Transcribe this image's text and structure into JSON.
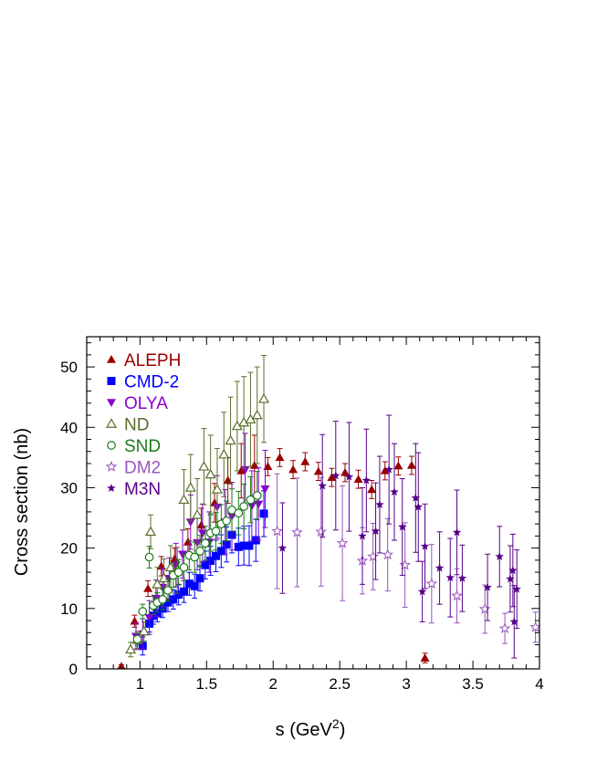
{
  "chart_data": {
    "type": "scatter",
    "xlabel": "s    (GeV",
    "xlabel_sup": "2",
    "xlabel_end": ")",
    "ylabel": "Cross section  (nb)",
    "xlim": [
      0.6,
      4.0
    ],
    "ylim": [
      0,
      55
    ],
    "xticks": [
      1,
      1.5,
      2,
      2.5,
      3,
      3.5,
      4
    ],
    "xtick_labels": [
      "1",
      "1.5",
      "2",
      "2.5",
      "3",
      "3.5",
      "4"
    ],
    "yticks": [
      0,
      10,
      20,
      30,
      40,
      50
    ],
    "ytick_labels": [
      "0",
      "10",
      "20",
      "30",
      "40",
      "50"
    ],
    "legend_position": "top-left",
    "series": [
      {
        "name": "ALEPH",
        "marker": "triangle-up-filled",
        "color": "#990000",
        "points": [
          [
            0.86,
            0.4,
            0.3
          ],
          [
            0.96,
            7.9,
            1.0
          ],
          [
            1.06,
            13.3,
            1.3
          ],
          [
            1.16,
            17.0,
            1.6
          ],
          [
            1.26,
            18.2,
            1.8
          ],
          [
            1.36,
            21.0,
            2.2
          ],
          [
            1.46,
            23.8,
            2.8
          ],
          [
            1.56,
            27.5,
            3.2
          ],
          [
            1.66,
            31.2,
            3.8
          ],
          [
            1.76,
            32.8,
            4.5
          ],
          [
            1.86,
            33.7,
            5.0
          ],
          [
            1.96,
            33.5,
            1.5
          ],
          [
            2.05,
            35.0,
            1.5
          ],
          [
            2.15,
            33.0,
            1.5
          ],
          [
            2.24,
            34.3,
            1.5
          ],
          [
            2.34,
            32.7,
            1.5
          ],
          [
            2.44,
            31.7,
            1.5
          ],
          [
            2.54,
            32.5,
            1.5
          ],
          [
            2.64,
            31.4,
            1.5
          ],
          [
            2.74,
            29.7,
            1.5
          ],
          [
            2.84,
            32.8,
            1.5
          ],
          [
            2.94,
            33.6,
            1.5
          ],
          [
            3.04,
            33.7,
            1.5
          ],
          [
            3.14,
            1.8,
            0.8
          ]
        ]
      },
      {
        "name": "CMD-2",
        "marker": "square-filled",
        "color": "#0000ff",
        "points": [
          [
            1.02,
            3.8,
            1.5
          ],
          [
            1.07,
            7.5,
            1.4
          ],
          [
            1.1,
            8.8,
            1.4
          ],
          [
            1.13,
            9.2,
            1.4
          ],
          [
            1.17,
            10.0,
            1.5
          ],
          [
            1.21,
            11.0,
            1.5
          ],
          [
            1.25,
            11.5,
            1.6
          ],
          [
            1.29,
            12.3,
            1.7
          ],
          [
            1.33,
            12.8,
            1.8
          ],
          [
            1.37,
            14.1,
            1.9
          ],
          [
            1.41,
            13.7,
            2.0
          ],
          [
            1.45,
            15.0,
            2.1
          ],
          [
            1.49,
            17.2,
            2.3
          ],
          [
            1.53,
            17.9,
            2.4
          ],
          [
            1.57,
            18.7,
            2.6
          ],
          [
            1.61,
            19.5,
            2.7
          ],
          [
            1.65,
            20.6,
            2.9
          ],
          [
            1.69,
            22.2,
            3.0
          ],
          [
            1.74,
            20.2,
            3.1
          ],
          [
            1.78,
            20.4,
            3.2
          ],
          [
            1.82,
            20.4,
            3.3
          ],
          [
            1.87,
            21.3,
            3.5
          ],
          [
            1.93,
            25.7,
            3.8
          ]
        ]
      },
      {
        "name": "OLYA",
        "marker": "triangle-down-filled",
        "color": "#8800cc",
        "points": [
          [
            0.97,
            5.4,
            2.2
          ],
          [
            1.02,
            5.8,
            2.5
          ],
          [
            1.07,
            8.5,
            2.8
          ],
          [
            1.12,
            11.7,
            3.0
          ],
          [
            1.17,
            13.5,
            3.2
          ],
          [
            1.22,
            15.0,
            3.4
          ],
          [
            1.27,
            17.2,
            3.6
          ],
          [
            1.32,
            19.0,
            4.0
          ],
          [
            1.38,
            24.3,
            4.5
          ],
          [
            1.43,
            20.9,
            4.5
          ],
          [
            1.47,
            22.5,
            4.8
          ],
          [
            1.52,
            21.0,
            5.0
          ],
          [
            1.58,
            26.8,
            5.2
          ],
          [
            1.64,
            24.3,
            5.4
          ],
          [
            1.69,
            25.3,
            5.6
          ],
          [
            1.79,
            33.0,
            6.0
          ],
          [
            1.84,
            27.0,
            5.8
          ],
          [
            1.89,
            27.3,
            6.0
          ],
          [
            1.94,
            29.8,
            6.4
          ]
        ]
      },
      {
        "name": "ND",
        "marker": "triangle-up-open",
        "color": "#5a6e2a",
        "points": [
          [
            0.93,
            3.2,
            1.2
          ],
          [
            0.98,
            4.8,
            1.4
          ],
          [
            1.03,
            6.2,
            1.6
          ],
          [
            1.08,
            22.7,
            2.8
          ],
          [
            1.13,
            14.0,
            2.8
          ],
          [
            1.18,
            15.0,
            3.2
          ],
          [
            1.23,
            16.8,
            3.6
          ],
          [
            1.28,
            16.3,
            3.8
          ],
          [
            1.33,
            28.0,
            5.0
          ],
          [
            1.38,
            30.0,
            5.5
          ],
          [
            1.43,
            25.5,
            6.0
          ],
          [
            1.48,
            33.5,
            6.3
          ],
          [
            1.53,
            32.2,
            6.5
          ],
          [
            1.58,
            29.7,
            6.8
          ],
          [
            1.63,
            35.5,
            7.0
          ],
          [
            1.68,
            37.8,
            7.2
          ],
          [
            1.73,
            40.2,
            7.4
          ],
          [
            1.78,
            40.8,
            7.6
          ],
          [
            1.83,
            41.3,
            7.8
          ],
          [
            1.88,
            42.0,
            8.0
          ],
          [
            1.93,
            44.7,
            7.2
          ]
        ]
      },
      {
        "name": "SND",
        "marker": "circle-open",
        "color": "#1a7a1a",
        "points": [
          [
            0.98,
            4.9,
            1.0
          ],
          [
            1.02,
            9.5,
            1.2
          ],
          [
            1.07,
            18.5,
            1.8
          ],
          [
            1.1,
            10.5,
            1.5
          ],
          [
            1.13,
            11.0,
            1.6
          ],
          [
            1.17,
            11.5,
            1.7
          ],
          [
            1.21,
            13.0,
            1.8
          ],
          [
            1.25,
            15.5,
            2.0
          ],
          [
            1.29,
            16.0,
            2.1
          ],
          [
            1.33,
            16.8,
            2.2
          ],
          [
            1.37,
            18.8,
            2.4
          ],
          [
            1.41,
            18.5,
            2.5
          ],
          [
            1.45,
            19.5,
            2.6
          ],
          [
            1.49,
            20.8,
            2.8
          ],
          [
            1.53,
            22.5,
            3.0
          ],
          [
            1.57,
            22.8,
            3.1
          ],
          [
            1.61,
            24.0,
            3.2
          ],
          [
            1.65,
            24.5,
            3.3
          ],
          [
            1.69,
            26.3,
            3.5
          ],
          [
            1.74,
            25.8,
            3.6
          ],
          [
            1.78,
            26.9,
            3.7
          ],
          [
            1.83,
            28.0,
            3.8
          ],
          [
            1.88,
            28.7,
            4.0
          ]
        ]
      },
      {
        "name": "DM2",
        "marker": "star-open",
        "color": "#9955bb",
        "points": [
          [
            2.03,
            22.8,
            9.5
          ],
          [
            2.18,
            22.6,
            9.0
          ],
          [
            2.36,
            22.7,
            9.0
          ],
          [
            2.52,
            20.8,
            9.5
          ],
          [
            2.67,
            17.9,
            5.5
          ],
          [
            2.75,
            18.6,
            5.5
          ],
          [
            2.86,
            18.9,
            6.0
          ],
          [
            2.99,
            17.2,
            7.0
          ],
          [
            3.19,
            14.1,
            6.5
          ],
          [
            3.38,
            12.1,
            4.5
          ],
          [
            3.59,
            9.9,
            4.0
          ],
          [
            3.74,
            6.7,
            2.5
          ],
          [
            3.97,
            6.9,
            2.5
          ]
        ]
      },
      {
        "name": "M3N",
        "marker": "star-filled",
        "color": "#550088",
        "points": [
          [
            2.07,
            20.0,
            7.5
          ],
          [
            2.37,
            30.3,
            8.5
          ],
          [
            2.47,
            32.0,
            9.0
          ],
          [
            2.57,
            31.8,
            9.0
          ],
          [
            2.67,
            22.0,
            8.0
          ],
          [
            2.7,
            31.2,
            8.5
          ],
          [
            2.77,
            22.8,
            8.0
          ],
          [
            2.8,
            27.2,
            8.0
          ],
          [
            2.87,
            33.0,
            9.0
          ],
          [
            2.91,
            29.3,
            8.0
          ],
          [
            2.97,
            23.5,
            8.0
          ],
          [
            3.07,
            28.3,
            9.0
          ],
          [
            3.09,
            26.8,
            9.0
          ],
          [
            3.12,
            12.8,
            5.0
          ],
          [
            3.14,
            20.3,
            7.0
          ],
          [
            3.25,
            16.7,
            6.0
          ],
          [
            3.33,
            15.1,
            6.5
          ],
          [
            3.38,
            22.6,
            7.0
          ],
          [
            3.42,
            15.0,
            5.5
          ],
          [
            3.61,
            13.5,
            5.5
          ],
          [
            3.7,
            18.6,
            5.0
          ],
          [
            3.78,
            14.9,
            5.5
          ],
          [
            3.8,
            16.3,
            6.0
          ],
          [
            3.83,
            13.2,
            6.5
          ],
          [
            3.81,
            7.8,
            6.0
          ]
        ]
      }
    ]
  }
}
